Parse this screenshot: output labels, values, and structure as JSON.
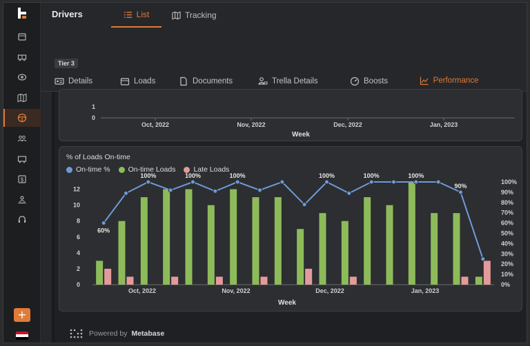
{
  "colors": {
    "accent": "#e07b39",
    "ontime_pct": "#6f9ad8",
    "ontime_loads": "#8dbb5a",
    "late_loads": "#e59a9a"
  },
  "sidebar": {
    "items": [
      {
        "icon": "calendar-icon"
      },
      {
        "icon": "truck-icon"
      },
      {
        "icon": "eye-icon"
      },
      {
        "icon": "map-icon"
      },
      {
        "icon": "steering-wheel-icon",
        "active": true
      },
      {
        "icon": "users-icon"
      },
      {
        "icon": "trailer-icon"
      },
      {
        "icon": "dollar-icon"
      },
      {
        "icon": "user-desk-icon"
      },
      {
        "icon": "headset-icon"
      }
    ],
    "add_label": "+"
  },
  "header": {
    "title": "Drivers",
    "tabs": [
      {
        "label": "List",
        "icon": "list-icon",
        "active": true
      },
      {
        "label": "Tracking",
        "icon": "map-icon",
        "active": false
      }
    ]
  },
  "tier_badge": "Tier 3",
  "tabs": [
    {
      "label": "Details",
      "icon": "id-card-icon"
    },
    {
      "label": "Loads",
      "icon": "box-icon"
    },
    {
      "label": "Documents",
      "icon": "document-icon"
    },
    {
      "label": "Trella Details",
      "icon": "user-truck-icon"
    },
    {
      "label": "Boosts",
      "icon": "gauge-icon"
    },
    {
      "label": "Performance",
      "icon": "chart-icon",
      "active": true
    }
  ],
  "chart_data": [
    {
      "type": "line",
      "title": "",
      "xlabel": "Week",
      "y_ticks": [
        "1",
        "0"
      ],
      "x_ticks": [
        "Oct, 2022",
        "Nov, 2022",
        "Dec, 2022",
        "Jan, 2023"
      ]
    },
    {
      "type": "bar",
      "title": "% of Loads On-time",
      "xlabel": "Week",
      "x_ticks": [
        "Oct, 2022",
        "Nov, 2022",
        "Dec, 2022",
        "Jan, 2023"
      ],
      "y_left_ticks": [
        0,
        2,
        4,
        6,
        8,
        10,
        12
      ],
      "y_right_ticks": [
        "0%",
        "10%",
        "20%",
        "30%",
        "40%",
        "50%",
        "60%",
        "70%",
        "80%",
        "90%",
        "100%"
      ],
      "ylim_left": [
        0,
        13
      ],
      "ylim_right": [
        0,
        100
      ],
      "series": [
        {
          "name": "On-time %",
          "kind": "line",
          "axis": "right",
          "values": [
            60,
            89,
            100,
            92,
            100,
            91,
            100,
            92,
            100,
            78,
            100,
            89,
            100,
            100,
            100,
            100,
            90,
            25
          ]
        },
        {
          "name": "On-time Loads",
          "kind": "bar",
          "axis": "left",
          "values": [
            3,
            8,
            11,
            12,
            12,
            10,
            12,
            11,
            11,
            7,
            9,
            8,
            11,
            10,
            13,
            9,
            9,
            1
          ]
        },
        {
          "name": "Late Loads",
          "kind": "bar",
          "axis": "left",
          "values": [
            2,
            1,
            0,
            1,
            0,
            1,
            0,
            1,
            0,
            2,
            0,
            1,
            0,
            0,
            0,
            0,
            1,
            3
          ]
        }
      ],
      "point_labels": [
        "60%",
        "",
        "100%",
        "",
        "100%",
        "",
        "100%",
        "",
        "",
        "",
        "100%",
        "",
        "100%",
        "",
        "100%",
        "",
        "90%",
        ""
      ]
    }
  ],
  "footer": {
    "prefix": "Powered by",
    "brand": "Metabase"
  },
  "flag": [
    "#ce1126",
    "#ffffff",
    "#000000"
  ]
}
